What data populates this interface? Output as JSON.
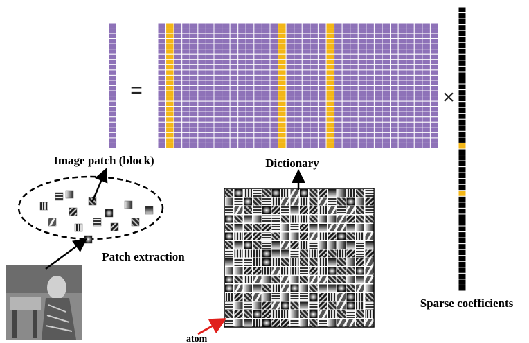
{
  "labels": {
    "image_patch": "Image patch (block)",
    "dictionary": "Dictionary",
    "patch_extraction": "Patch extraction",
    "sparse_coefficients": "Sparse coefficients",
    "atom": "atom"
  },
  "operators": {
    "equals": "=",
    "times": "×"
  }
}
